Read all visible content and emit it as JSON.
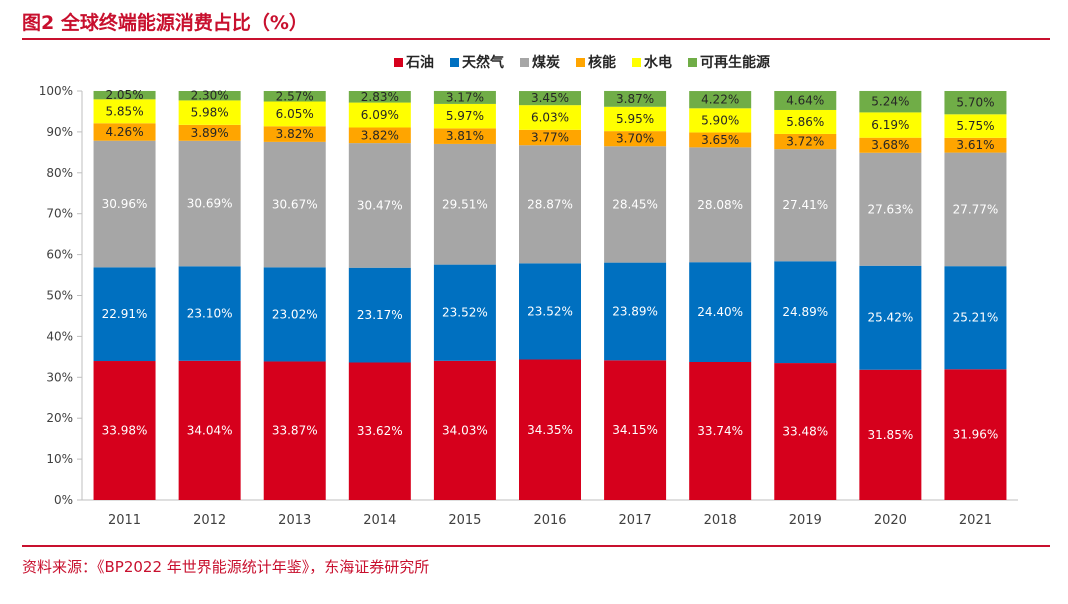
{
  "figure": {
    "title": "图2  全球终端能源消费占比（%）",
    "source": "资料来源：《BP2022 年世界能源统计年鉴》，东海证券研究所"
  },
  "chart_data": {
    "type": "bar",
    "stacked": true,
    "categories": [
      "2011",
      "2012",
      "2013",
      "2014",
      "2015",
      "2016",
      "2017",
      "2018",
      "2019",
      "2020",
      "2021"
    ],
    "ylim": [
      0,
      100
    ],
    "y_ticks": [
      "0%",
      "10%",
      "20%",
      "30%",
      "40%",
      "50%",
      "60%",
      "70%",
      "80%",
      "90%",
      "100%"
    ],
    "legend_position": "top",
    "series": [
      {
        "name": "石油",
        "color": "#d6001c",
        "label_color": "#ffffff",
        "values": [
          33.98,
          34.04,
          33.87,
          33.62,
          34.03,
          34.35,
          34.15,
          33.74,
          33.48,
          31.85,
          31.96
        ],
        "labels": [
          "33.98%",
          "34.04%",
          "33.87%",
          "33.62%",
          "34.03%",
          "34.35%",
          "34.15%",
          "33.74%",
          "33.48%",
          "31.85%",
          "31.96%"
        ]
      },
      {
        "name": "天然气",
        "color": "#0070c0",
        "label_color": "#ffffff",
        "values": [
          22.91,
          23.1,
          23.02,
          23.17,
          23.52,
          23.52,
          23.89,
          24.4,
          24.89,
          25.42,
          25.21
        ],
        "labels": [
          "22.91%",
          "23.10%",
          "23.02%",
          "23.17%",
          "23.52%",
          "23.52%",
          "23.89%",
          "24.40%",
          "24.89%",
          "25.42%",
          "25.21%"
        ]
      },
      {
        "name": "煤炭",
        "color": "#a6a6a6",
        "label_color": "#ffffff",
        "values": [
          30.96,
          30.69,
          30.67,
          30.47,
          29.51,
          28.87,
          28.45,
          28.08,
          27.41,
          27.63,
          27.77
        ],
        "labels": [
          "30.96%",
          "30.69%",
          "30.67%",
          "30.47%",
          "29.51%",
          "28.87%",
          "28.45%",
          "28.08%",
          "27.41%",
          "27.63%",
          "27.77%"
        ]
      },
      {
        "name": "核能",
        "color": "#ffa500",
        "label_color": "#262626",
        "values": [
          4.26,
          3.89,
          3.82,
          3.82,
          3.81,
          3.77,
          3.7,
          3.65,
          3.72,
          3.68,
          3.61
        ],
        "labels": [
          "4.26%",
          "3.89%",
          "3.82%",
          "3.82%",
          "3.81%",
          "3.77%",
          "3.70%",
          "3.65%",
          "3.72%",
          "3.68%",
          "3.61%"
        ]
      },
      {
        "name": "水电",
        "color": "#ffff00",
        "label_color": "#262626",
        "values": [
          5.85,
          5.98,
          6.05,
          6.09,
          5.97,
          6.03,
          5.95,
          5.9,
          5.86,
          6.19,
          5.75
        ],
        "labels": [
          "5.85%",
          "5.98%",
          "6.05%",
          "6.09%",
          "5.97%",
          "6.03%",
          "5.95%",
          "5.90%",
          "5.86%",
          "6.19%",
          "5.75%"
        ]
      },
      {
        "name": "可再生能源",
        "color": "#70ad47",
        "label_color": "#262626",
        "values": [
          2.05,
          2.3,
          2.57,
          2.83,
          3.17,
          3.45,
          3.87,
          4.22,
          4.64,
          5.24,
          5.7
        ],
        "labels": [
          "2.05%",
          "2.30%",
          "2.57%",
          "2.83%",
          "3.17%",
          "3.45%",
          "3.87%",
          "4.22%",
          "4.64%",
          "5.24%",
          "5.70%"
        ]
      }
    ]
  }
}
